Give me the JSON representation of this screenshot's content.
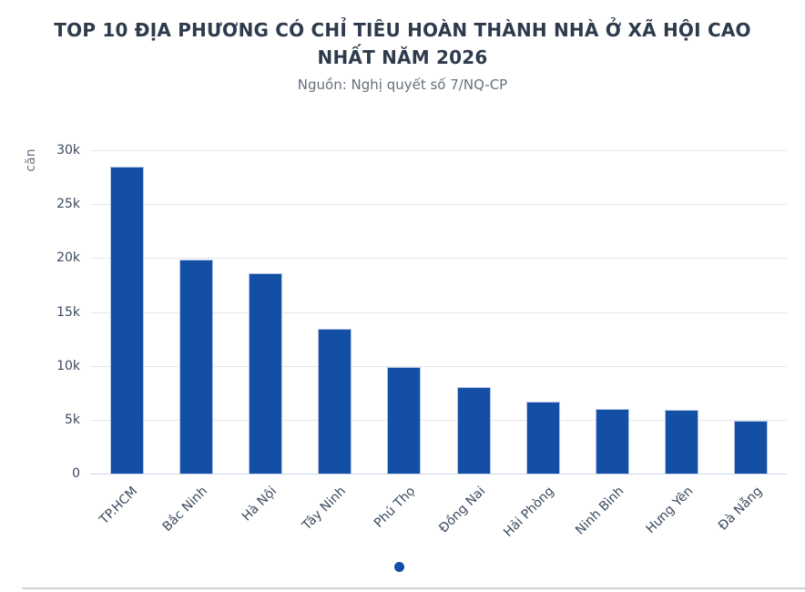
{
  "page": {
    "title": "TOP 10 ĐỊA PHƯƠNG CÓ CHỈ TIÊU HOÀN THÀNH NHÀ Ở XÃ HỘI CAO NHẤT NĂM 2026",
    "subtitle": "Nguồn: Nghị quyết số 7/NQ-CP"
  },
  "chart_data": {
    "type": "bar",
    "title": "TOP 10 ĐỊA PHƯƠNG CÓ CHỈ TIÊU HOÀN THÀNH NHÀ Ở XÃ HỘI CAO NHẤT NĂM 2026",
    "subtitle": "Nguồn: Nghị quyết số 7/NQ-CP",
    "categories": [
      "TP.HCM",
      "Bắc Ninh",
      "Hà Nội",
      "Tây Ninh",
      "Phú Thọ",
      "Đồng Nai",
      "Hải Phòng",
      "Ninh Bình",
      "Hưng Yên",
      "Đà Nẵng"
    ],
    "values": [
      28500,
      19900,
      18600,
      13400,
      9900,
      8000,
      6700,
      6000,
      5900,
      4900
    ],
    "xlabel": "",
    "ylabel": "căn",
    "ylim": [
      0,
      30000
    ],
    "ytick_step": 5000,
    "ytick_labels": [
      "0",
      "5k",
      "10k",
      "15k",
      "20k",
      "25k",
      "30k"
    ],
    "grid": true,
    "legend": "none",
    "bar_color": "#134fa4",
    "bar_border_color": "#b3c5e6",
    "gridline_color": "#e7e7e7",
    "zero_line_color": "#ccd6ea"
  },
  "carousel": {
    "dots": [
      "active"
    ]
  }
}
